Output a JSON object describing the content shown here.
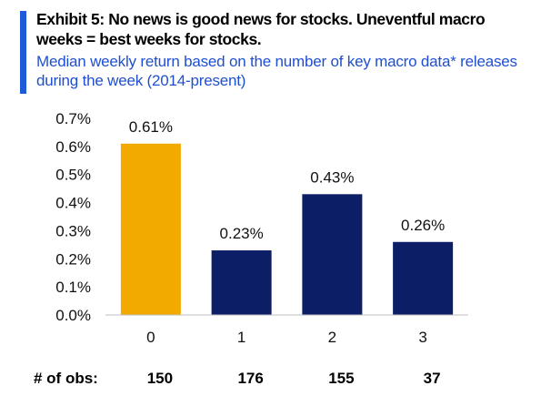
{
  "header": {
    "title": "Exhibit 5: No news is good news for stocks. Uneventful macro weeks = best weeks for stocks.",
    "subtitle": "Median weekly return based on the number of key macro data* releases during the week (2014-present)"
  },
  "colors": {
    "accent": "#1f5bd8",
    "highlight_bar": "#f2a900",
    "bar": "#0c1f66",
    "subtitle": "#1f4fd1"
  },
  "chart_data": {
    "type": "bar",
    "title": "Exhibit 5: No news is good news for stocks. Uneventful macro weeks = best weeks for stocks.",
    "subtitle": "Median weekly return based on the number of key macro data* releases during the week (2014-present)",
    "xlabel": "",
    "ylabel": "",
    "categories": [
      "0",
      "1",
      "2",
      "3"
    ],
    "values": [
      0.61,
      0.23,
      0.43,
      0.26
    ],
    "data_labels": [
      "0.61%",
      "0.23%",
      "0.43%",
      "0.26%"
    ],
    "bar_colors": [
      "#f2a900",
      "#0c1f66",
      "#0c1f66",
      "#0c1f66"
    ],
    "ylim": [
      0,
      0.7
    ],
    "yticks": [
      0.0,
      0.1,
      0.2,
      0.3,
      0.4,
      0.5,
      0.6,
      0.7
    ],
    "ytick_labels": [
      "0.0%",
      "0.1%",
      "0.2%",
      "0.3%",
      "0.4%",
      "0.5%",
      "0.6%",
      "0.7%"
    ],
    "grid": false,
    "legend": "none",
    "obs_row": {
      "label": "# of obs:",
      "values": [
        "150",
        "176",
        "155",
        "37"
      ]
    }
  }
}
